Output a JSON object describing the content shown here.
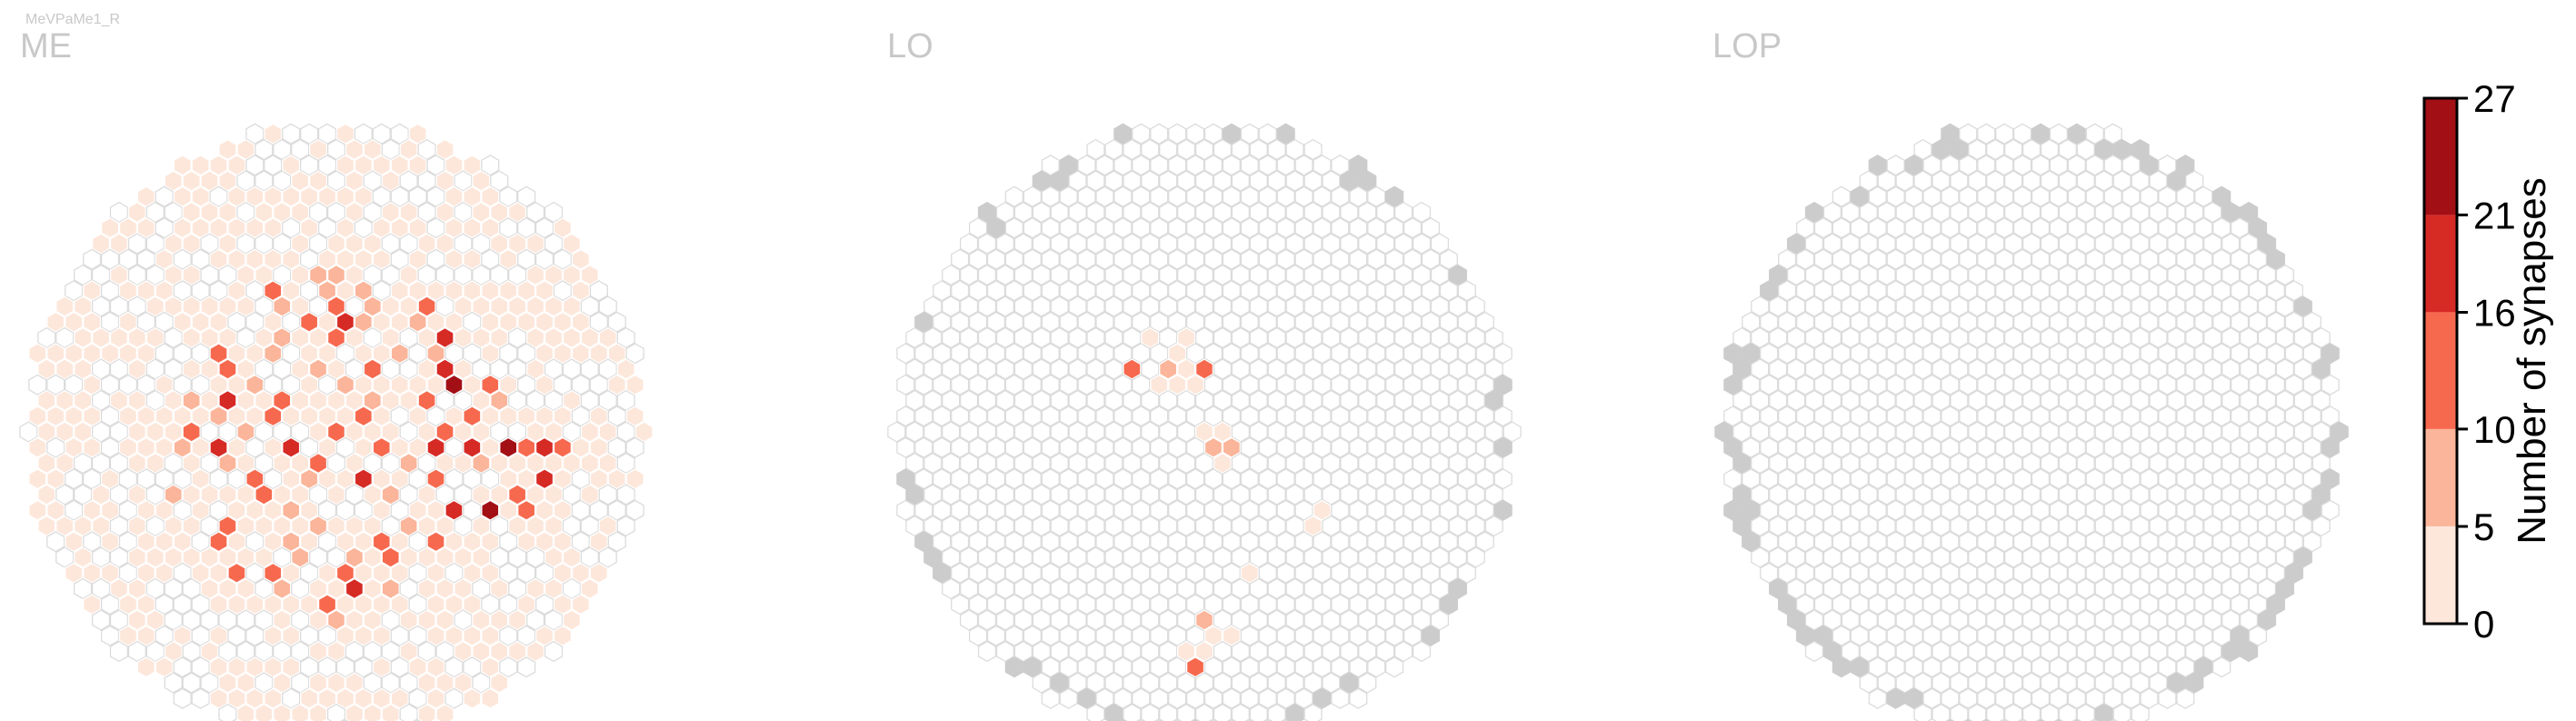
{
  "figure_label": "MeVPaMe1_R",
  "chart_data": {
    "type": "heatmap",
    "layout": "hexagonal-grid",
    "panels": [
      {
        "title": "ME",
        "highlighted_columns": [
          {
            "hex_row": -10,
            "hex_col": -1,
            "value": 9
          },
          {
            "hex_row": -10,
            "hex_col": 0,
            "value": 7
          },
          {
            "hex_row": -9,
            "hex_col": -4,
            "value": 12
          },
          {
            "hex_row": -9,
            "hex_col": -1,
            "value": 6
          },
          {
            "hex_row": -9,
            "hex_col": 1,
            "value": 10
          },
          {
            "hex_row": -9,
            "hex_col": 3,
            "value": 4
          },
          {
            "hex_row": -8,
            "hex_col": -3,
            "value": 8
          },
          {
            "hex_row": -8,
            "hex_col": 0,
            "value": 11
          },
          {
            "hex_row": -8,
            "hex_col": 2,
            "value": 7
          },
          {
            "hex_row": -8,
            "hex_col": 5,
            "value": 12
          },
          {
            "hex_row": -7,
            "hex_col": -2,
            "value": 14
          },
          {
            "hex_row": -7,
            "hex_col": 0,
            "value": 18
          },
          {
            "hex_row": -7,
            "hex_col": 1,
            "value": 9
          },
          {
            "hex_row": -7,
            "hex_col": 4,
            "value": 6
          },
          {
            "hex_row": -6,
            "hex_col": -6,
            "value": 5
          },
          {
            "hex_row": -6,
            "hex_col": -3,
            "value": 10
          },
          {
            "hex_row": -6,
            "hex_col": 0,
            "value": 12
          },
          {
            "hex_row": -6,
            "hex_col": 6,
            "value": 17
          },
          {
            "hex_row": -5,
            "hex_col": -7,
            "value": 11
          },
          {
            "hex_row": -5,
            "hex_col": -4,
            "value": 6
          },
          {
            "hex_row": -5,
            "hex_col": 3,
            "value": 8
          },
          {
            "hex_row": -5,
            "hex_col": 5,
            "value": 9
          },
          {
            "hex_row": -4,
            "hex_col": -6,
            "value": 12
          },
          {
            "hex_row": -4,
            "hex_col": -1,
            "value": 10
          },
          {
            "hex_row": -4,
            "hex_col": 2,
            "value": 13
          },
          {
            "hex_row": -4,
            "hex_col": 6,
            "value": 19
          },
          {
            "hex_row": -3,
            "hex_col": -5,
            "value": 8
          },
          {
            "hex_row": -3,
            "hex_col": 0,
            "value": 7
          },
          {
            "hex_row": -3,
            "hex_col": 6,
            "value": 22
          },
          {
            "hex_row": -3,
            "hex_col": 8,
            "value": 11
          },
          {
            "hex_row": -2,
            "hex_col": -8,
            "value": 9
          },
          {
            "hex_row": -2,
            "hex_col": -6,
            "value": 17
          },
          {
            "hex_row": -2,
            "hex_col": -3,
            "value": 12
          },
          {
            "hex_row": -2,
            "hex_col": 2,
            "value": 10
          },
          {
            "hex_row": -2,
            "hex_col": 5,
            "value": 15
          },
          {
            "hex_row": -2,
            "hex_col": 9,
            "value": 9
          },
          {
            "hex_row": -1,
            "hex_col": -7,
            "value": 10
          },
          {
            "hex_row": -1,
            "hex_col": -4,
            "value": 13
          },
          {
            "hex_row": -1,
            "hex_col": 1,
            "value": 16
          },
          {
            "hex_row": -1,
            "hex_col": 7,
            "value": 16
          },
          {
            "hex_row": 0,
            "hex_col": -8,
            "value": 11
          },
          {
            "hex_row": 0,
            "hex_col": -5,
            "value": 9
          },
          {
            "hex_row": 0,
            "hex_col": 0,
            "value": 12
          },
          {
            "hex_row": 0,
            "hex_col": 6,
            "value": 12
          },
          {
            "hex_row": 1,
            "hex_col": -9,
            "value": 10
          },
          {
            "hex_row": 1,
            "hex_col": -7,
            "value": 18
          },
          {
            "hex_row": 1,
            "hex_col": -3,
            "value": 19
          },
          {
            "hex_row": 1,
            "hex_col": 2,
            "value": 11
          },
          {
            "hex_row": 1,
            "hex_col": 5,
            "value": 18
          },
          {
            "hex_row": 1,
            "hex_col": 7,
            "value": 19
          },
          {
            "hex_row": 1,
            "hex_col": 9,
            "value": 25
          },
          {
            "hex_row": 1,
            "hex_col": 10,
            "value": 13
          },
          {
            "hex_row": 1,
            "hex_col": 11,
            "value": 21
          },
          {
            "hex_row": 1,
            "hex_col": 12,
            "value": 15
          },
          {
            "hex_row": 2,
            "hex_col": -6,
            "value": 9
          },
          {
            "hex_row": 2,
            "hex_col": -1,
            "value": 12
          },
          {
            "hex_row": 2,
            "hex_col": 4,
            "value": 8
          },
          {
            "hex_row": 2,
            "hex_col": 8,
            "value": 10
          },
          {
            "hex_row": 3,
            "hex_col": -5,
            "value": 15
          },
          {
            "hex_row": 3,
            "hex_col": -2,
            "value": 8
          },
          {
            "hex_row": 3,
            "hex_col": 1,
            "value": 17
          },
          {
            "hex_row": 3,
            "hex_col": 5,
            "value": 12
          },
          {
            "hex_row": 3,
            "hex_col": 11,
            "value": 20
          },
          {
            "hex_row": 4,
            "hex_col": -9,
            "value": 10
          },
          {
            "hex_row": 4,
            "hex_col": -4,
            "value": 11
          },
          {
            "hex_row": 4,
            "hex_col": 3,
            "value": 9
          },
          {
            "hex_row": 4,
            "hex_col": 10,
            "value": 12
          },
          {
            "hex_row": 5,
            "hex_col": -3,
            "value": 8
          },
          {
            "hex_row": 5,
            "hex_col": 6,
            "value": 17
          },
          {
            "hex_row": 5,
            "hex_col": 8,
            "value": 24
          },
          {
            "hex_row": 5,
            "hex_col": 10,
            "value": 14
          },
          {
            "hex_row": 6,
            "hex_col": -6,
            "value": 12
          },
          {
            "hex_row": 6,
            "hex_col": -1,
            "value": 9
          },
          {
            "hex_row": 6,
            "hex_col": 4,
            "value": 10
          },
          {
            "hex_row": 7,
            "hex_col": -7,
            "value": 11
          },
          {
            "hex_row": 7,
            "hex_col": -3,
            "value": 8
          },
          {
            "hex_row": 7,
            "hex_col": 2,
            "value": 12
          },
          {
            "hex_row": 7,
            "hex_col": 5,
            "value": 14
          },
          {
            "hex_row": 8,
            "hex_col": -2,
            "value": 10
          },
          {
            "hex_row": 8,
            "hex_col": 1,
            "value": 7
          },
          {
            "hex_row": 8,
            "hex_col": 3,
            "value": 13
          },
          {
            "hex_row": 9,
            "hex_col": -6,
            "value": 16
          },
          {
            "hex_row": 9,
            "hex_col": -4,
            "value": 12
          },
          {
            "hex_row": 9,
            "hex_col": 0,
            "value": 11
          },
          {
            "hex_row": 10,
            "hex_col": -3,
            "value": 9
          },
          {
            "hex_row": 10,
            "hex_col": 1,
            "value": 18
          },
          {
            "hex_row": 10,
            "hex_col": 3,
            "value": 8
          },
          {
            "hex_row": 11,
            "hex_col": -1,
            "value": 12
          },
          {
            "hex_row": 12,
            "hex_col": 0,
            "value": 10
          }
        ],
        "background_fill_density": 0.6,
        "background_max_value": 5
      },
      {
        "title": "LO",
        "highlighted_columns": [
          {
            "hex_row": -6,
            "hex_col": -3,
            "value": 3
          },
          {
            "hex_row": -6,
            "hex_col": -1,
            "value": 2
          },
          {
            "hex_row": -5,
            "hex_col": -2,
            "value": 2
          },
          {
            "hex_row": -4,
            "hex_col": -4,
            "value": 13
          },
          {
            "hex_row": -4,
            "hex_col": -2,
            "value": 7
          },
          {
            "hex_row": -4,
            "hex_col": -1,
            "value": 4
          },
          {
            "hex_row": -4,
            "hex_col": 0,
            "value": 15
          },
          {
            "hex_row": -3,
            "hex_col": -3,
            "value": 5
          },
          {
            "hex_row": -3,
            "hex_col": -2,
            "value": 3
          },
          {
            "hex_row": -3,
            "hex_col": -1,
            "value": 4
          },
          {
            "hex_row": 0,
            "hex_col": 0,
            "value": 3
          },
          {
            "hex_row": 0,
            "hex_col": 1,
            "value": 4
          },
          {
            "hex_row": 1,
            "hex_col": 0,
            "value": 6
          },
          {
            "hex_row": 1,
            "hex_col": 1,
            "value": 9
          },
          {
            "hex_row": 2,
            "hex_col": 1,
            "value": 2
          },
          {
            "hex_row": 5,
            "hex_col": 6,
            "value": 2
          },
          {
            "hex_row": 6,
            "hex_col": 6,
            "value": 3
          },
          {
            "hex_row": 9,
            "hex_col": 2,
            "value": 2
          },
          {
            "hex_row": 12,
            "hex_col": 0,
            "value": 8
          },
          {
            "hex_row": 13,
            "hex_col": 0,
            "value": 5
          },
          {
            "hex_row": 13,
            "hex_col": 1,
            "value": 3
          },
          {
            "hex_row": 14,
            "hex_col": -1,
            "value": 4
          },
          {
            "hex_row": 14,
            "hex_col": 0,
            "value": 2
          },
          {
            "hex_row": 15,
            "hex_col": -1,
            "value": 11
          }
        ],
        "background_fill_density": 0.0,
        "background_max_value": 0
      },
      {
        "title": "LOP",
        "highlighted_columns": [],
        "background_fill_density": 0.0,
        "background_max_value": 0
      }
    ],
    "colorbar": {
      "label": "Number of synapses",
      "ticks": [
        "0",
        "5",
        "10",
        "16",
        "21",
        "27"
      ],
      "tick_values": [
        0,
        5,
        10,
        16,
        21,
        27
      ],
      "colors": [
        "#fde7db",
        "#fbb59a",
        "#f7694e",
        "#d62a25",
        "#a20f15"
      ],
      "range": [
        0,
        27
      ]
    },
    "colors": {
      "empty_fill": "#ffffff",
      "empty_stroke": "#dcdcdc",
      "boundary_fill": "#cccccc",
      "title_color": "#c8c8c8"
    }
  }
}
